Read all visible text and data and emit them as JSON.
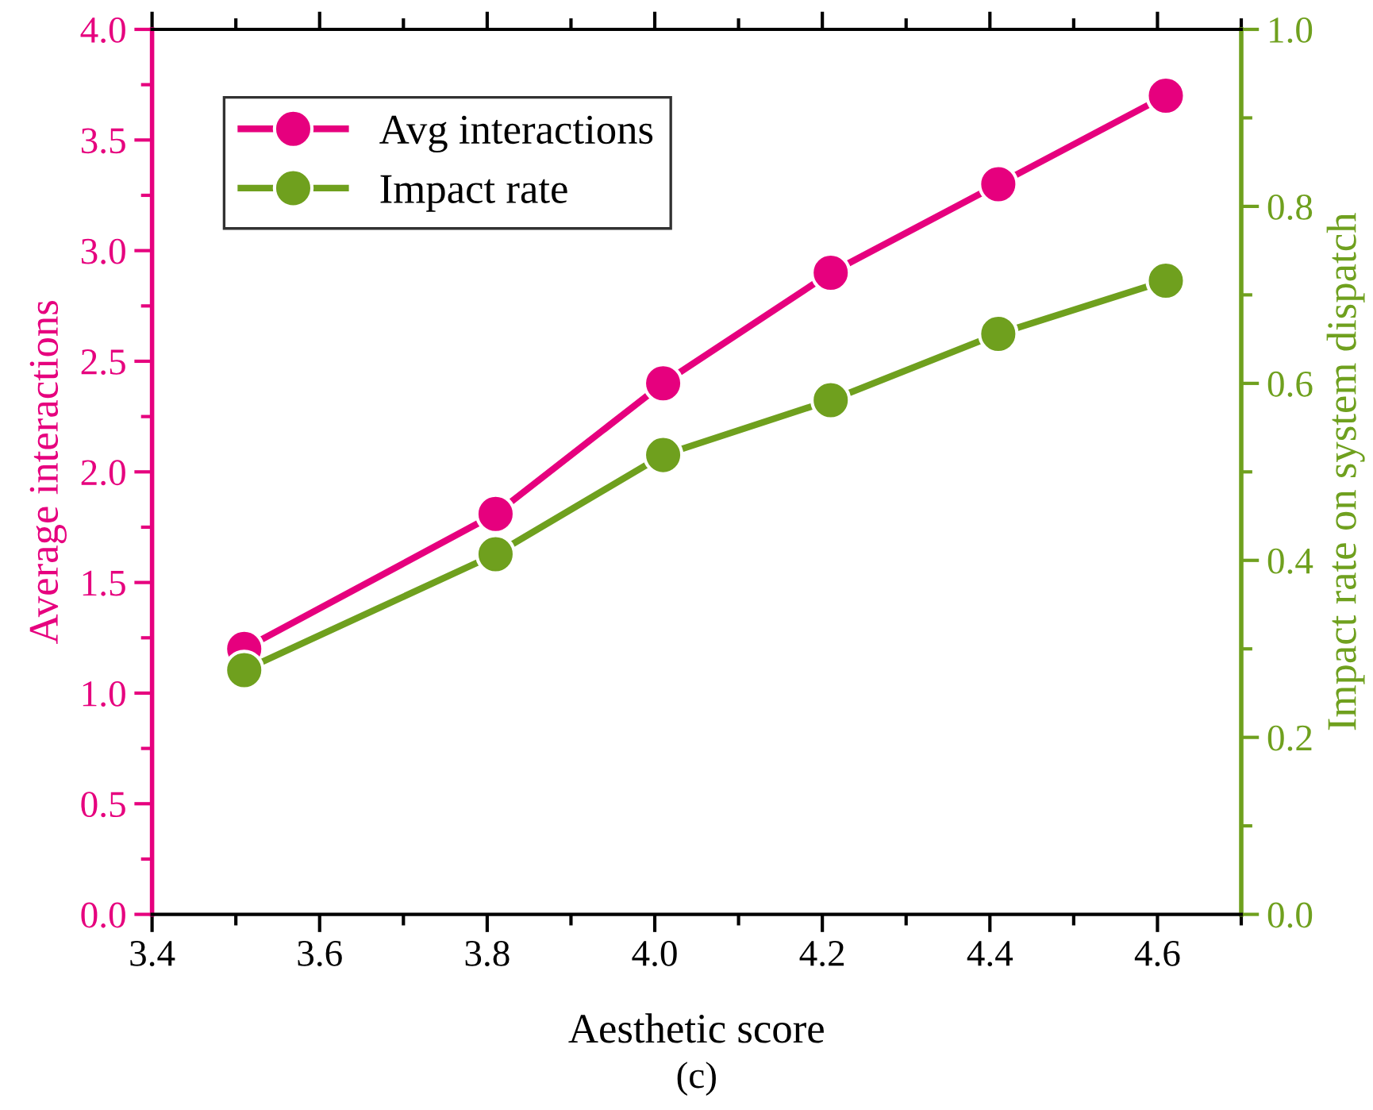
{
  "chart_data": {
    "type": "line",
    "xlabel": "Aesthetic score",
    "ylabel": "Average interactions",
    "y2label": "Impact rate on system dispatch",
    "annotations": [
      "(c)"
    ],
    "x": [
      3.51,
      3.81,
      4.01,
      4.21,
      4.41,
      4.61
    ],
    "series": [
      {
        "name": "Avg interactions",
        "color": "#e6007e",
        "values": [
          1.2,
          1.81,
          2.4,
          2.9,
          3.3,
          3.7
        ]
      },
      {
        "name": "Impact rate",
        "color": "#6fa01e",
        "axis": "y2",
        "values": [
          0.276,
          0.407,
          0.519,
          0.581,
          0.656,
          0.716
        ]
      }
    ],
    "xlim": [
      3.4,
      4.7
    ],
    "xticks": [
      3.4,
      3.6,
      3.8,
      {
        "value": 4,
        "label": "4.0"
      },
      4.2,
      4.4,
      4.6
    ],
    "ylim": [
      0,
      4
    ],
    "yticks": [
      {
        "value": 0,
        "label": "0.0"
      },
      0.5,
      {
        "value": 1,
        "label": "1.0"
      },
      1.5,
      {
        "value": 2,
        "label": "2.0"
      },
      2.5,
      {
        "value": 3,
        "label": "3.0"
      },
      3.5,
      {
        "value": 4,
        "label": "4.0"
      }
    ],
    "y2lim": [
      0,
      1
    ],
    "y2ticks": [
      {
        "value": 0,
        "label": "0.0"
      },
      0.2,
      0.4,
      0.6,
      0.8,
      {
        "value": 1,
        "label": "1.0"
      }
    ],
    "legend": "top left",
    "grid": false,
    "marker": "circle",
    "line_style": "solid"
  }
}
